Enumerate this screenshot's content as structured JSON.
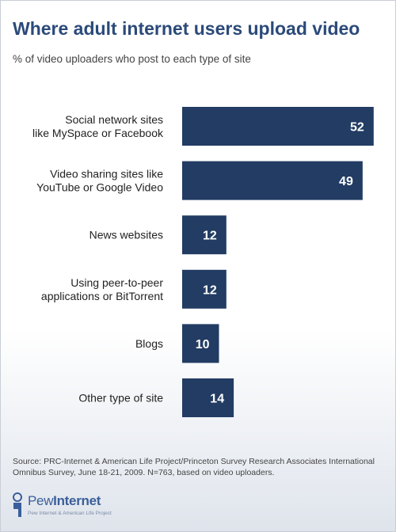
{
  "chart_data": {
    "type": "bar",
    "orientation": "horizontal",
    "title": "Where adult internet users upload video",
    "subtitle": "% of video uploaders who post to each type of site",
    "categories": [
      [
        "Social network sites",
        "like MySpace or Facebook"
      ],
      [
        "Video sharing sites like",
        "YouTube or Google Video"
      ],
      [
        "News websites"
      ],
      [
        "Using peer-to-peer",
        "applications or BitTorrent"
      ],
      [
        "Blogs"
      ],
      [
        "Other type of site"
      ]
    ],
    "values": [
      52,
      49,
      12,
      12,
      10,
      14
    ],
    "data_labels": [
      "52",
      "49",
      "12",
      "12",
      "10",
      "14"
    ],
    "bar_color": "#223c63",
    "label_color": "#ffffff",
    "grid": false,
    "legend": "none"
  },
  "source": "Source: PRC-Internet & American Life Project/Princeton Survey Research Associates International Omnibus Survey, June 18-21, 2009. N=763, based on video uploaders.",
  "logo": {
    "name_part1": "Pew",
    "name_part2": "Internet",
    "tagline": "Pew Internet & American Life Project"
  },
  "colors": {
    "title": "#2b4a7a",
    "bar": "#223c63"
  }
}
